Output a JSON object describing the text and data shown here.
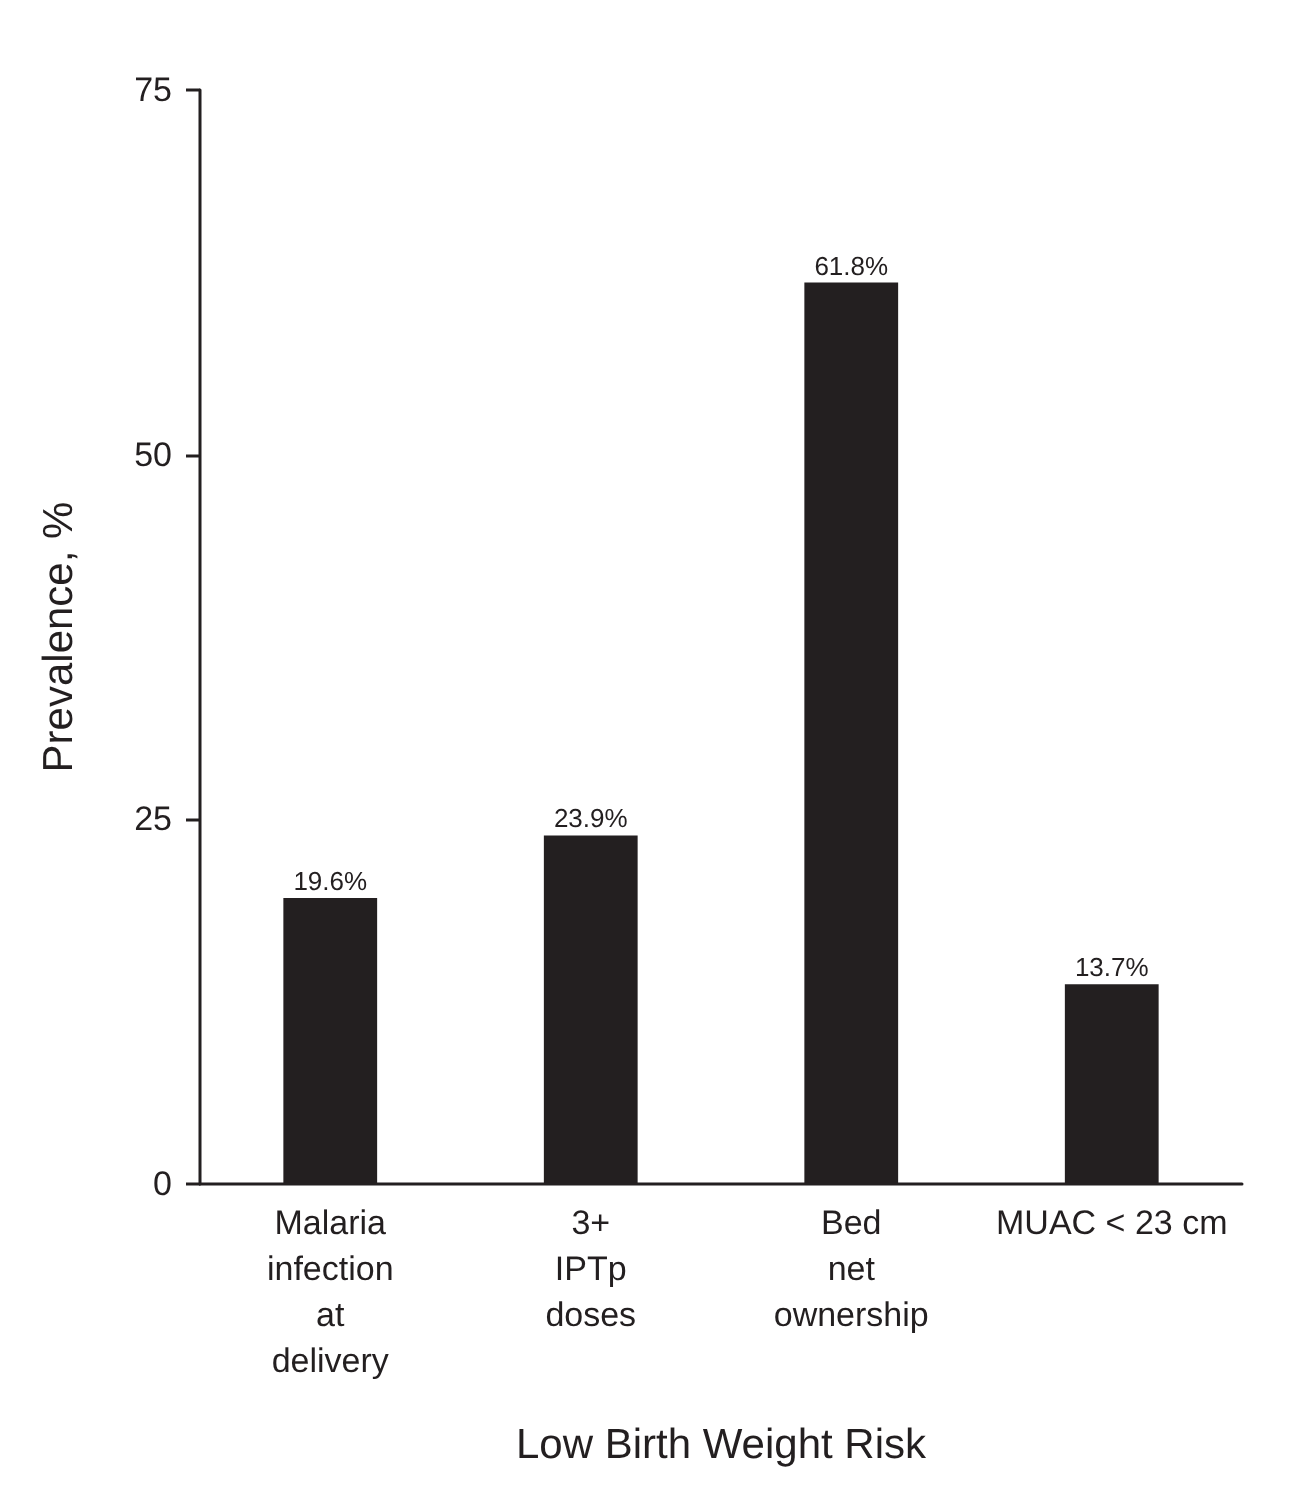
{
  "chart_data": {
    "type": "bar",
    "xlabel": "Low Birth Weight Risk",
    "ylabel": "Prevalence, %",
    "categories": [
      "Malaria\ninfection\nat\ndelivery",
      "3+\nIPTp\ndoses",
      "Bed\nnet\nownership",
      "MUAC < 23 cm"
    ],
    "values": [
      19.6,
      23.9,
      61.8,
      13.7
    ],
    "value_labels": [
      "19.6%",
      "23.9%",
      "61.8%",
      "13.7%"
    ],
    "color": "#231f20",
    "ylim": [
      0,
      75
    ],
    "yticks": [
      0,
      25,
      50,
      75
    ],
    "grid": false
  }
}
